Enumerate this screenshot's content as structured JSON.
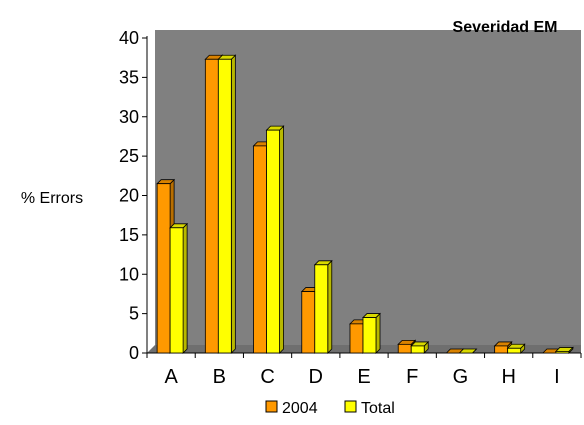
{
  "chart_data": {
    "type": "bar",
    "title": "Severidad EM",
    "ylabel": "% Errors",
    "xlabel": "",
    "categories": [
      "A",
      "B",
      "C",
      "D",
      "E",
      "F",
      "G",
      "H",
      "I"
    ],
    "series": [
      {
        "name": "2004",
        "values": [
          21.5,
          37.3,
          26.3,
          7.8,
          3.7,
          1.1,
          0.0,
          0.9,
          0.0
        ],
        "color": "#FF9900"
      },
      {
        "name": "Total",
        "values": [
          15.9,
          37.3,
          28.3,
          11.2,
          4.5,
          0.9,
          0.0,
          0.6,
          0.2
        ],
        "color": "#FFFF00"
      }
    ],
    "ylim": [
      0,
      40
    ],
    "yticks": [
      0,
      5,
      10,
      15,
      20,
      25,
      30,
      35,
      40
    ],
    "grid": false,
    "bar_style": "3d",
    "plot_background": "#808080",
    "legend_position": "bottom"
  }
}
